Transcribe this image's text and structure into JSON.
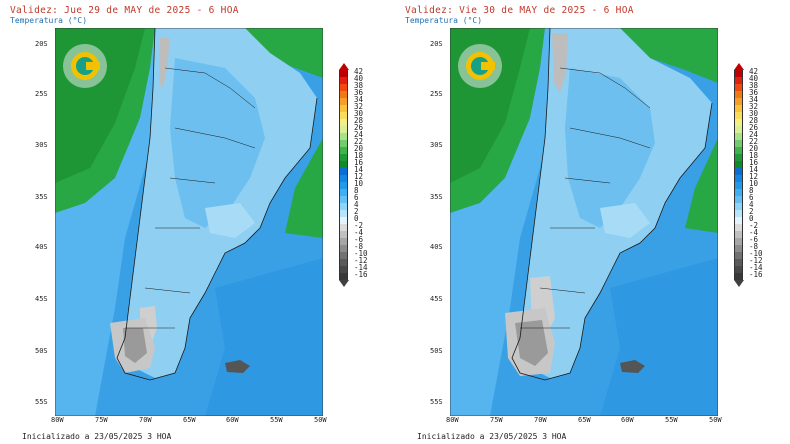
{
  "panels": [
    {
      "validity": "Validez: Jue 29 de MAY de 2025 - 6 HOA",
      "variable": "Temperatura (°C)",
      "initialized": "Inicializado a 23/05/2025 3 HOA"
    },
    {
      "validity": "Validez: Vie 30 de MAY de 2025 - 6 HOA",
      "variable": "Temperatura (°C)",
      "initialized": "Inicializado a 23/05/2025 3 HOA"
    }
  ],
  "lat_labels": [
    "20S",
    "25S",
    "30S",
    "35S",
    "40S",
    "45S",
    "50S",
    "55S"
  ],
  "lon_labels": [
    "80W",
    "75W",
    "70W",
    "65W",
    "60W",
    "55W",
    "50W"
  ],
  "colorbar": {
    "labels": [
      "42",
      "40",
      "38",
      "36",
      "34",
      "32",
      "30",
      "28",
      "26",
      "24",
      "22",
      "20",
      "18",
      "16",
      "14",
      "12",
      "10",
      "8",
      "6",
      "4",
      "2",
      "0",
      "-2",
      "-4",
      "-6",
      "-8",
      "-10",
      "-12",
      "-14",
      "-16"
    ],
    "colors": [
      "#c00000",
      "#e02010",
      "#f04a10",
      "#f07a18",
      "#f59e2a",
      "#f8c23c",
      "#f8dc5a",
      "#f2ef88",
      "#d8ef96",
      "#a8e08c",
      "#72cc6e",
      "#3fb44c",
      "#1f9a36",
      "#138a2a",
      "#0a6fd0",
      "#1286e0",
      "#229ae8",
      "#40aef0",
      "#62c0f4",
      "#8ed4f8",
      "#b6e4fa",
      "#e4f3fb",
      "#dadada",
      "#c0c0c0",
      "#a6a6a6",
      "#8c8c8c",
      "#727272",
      "#5a5a5a",
      "#484848",
      "#383838"
    ]
  },
  "colors": {
    "ocean_mid": "#3aa0e6",
    "ocean_deep": "#1f8fdc",
    "north_green": "#27a844",
    "land_light": "#8fcff2",
    "andes_gray": "#bdbdbd",
    "title_red": "#c0392b",
    "subtitle_blue": "#1f6fb2",
    "logo_yellow": "#f2c200",
    "logo_teal": "#16a085"
  }
}
